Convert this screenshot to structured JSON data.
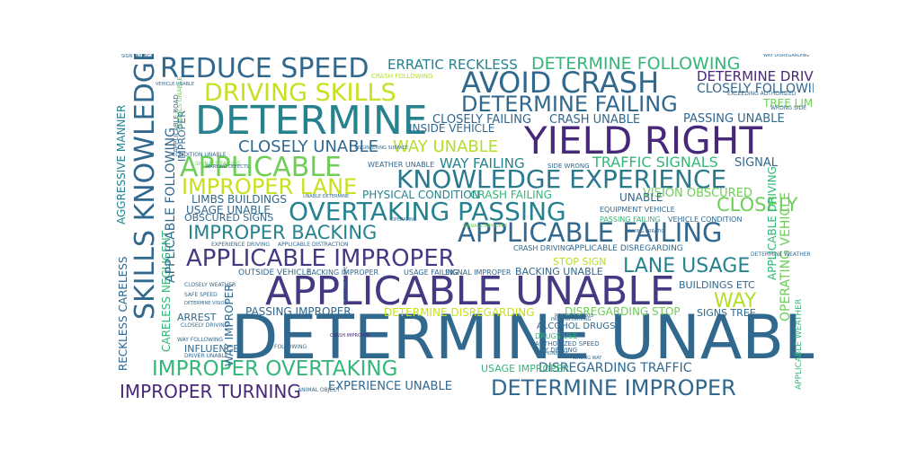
{
  "palette": {
    "dark_purple": "#482878",
    "purple": "#443983",
    "blue": "#31688e",
    "teal": "#26828e",
    "green_teal": "#1f9e89",
    "green": "#35b779",
    "lime": "#6ece58",
    "yellow_green": "#b5de2b",
    "yellow": "#fde725"
  },
  "words": [
    {
      "text": "DETERMINE UNABLE",
      "color": "#31688e"
    },
    {
      "text": "APPLICABLE UNABLE",
      "color": "#443983"
    },
    {
      "text": "YIELD RIGHT",
      "color": "#482878"
    },
    {
      "text": "DETERMINE",
      "color": "#26828e"
    },
    {
      "text": "AVOID CRASH",
      "color": "#31688e"
    },
    {
      "text": "SKILLS KNOWLEDGE",
      "color": "#31688e"
    },
    {
      "text": "REDUCE SPEED",
      "color": "#31688e"
    },
    {
      "text": "DRIVING SKILLS",
      "color": "#c8e020"
    },
    {
      "text": "DETERMINE FAILING",
      "color": "#31688e"
    },
    {
      "text": "KNOWLEDGE EXPERIENCE",
      "color": "#2a788e"
    },
    {
      "text": "APPLICABLE",
      "color": "#6ece58"
    },
    {
      "text": "IMPROPER LANE",
      "color": "#c8e020"
    },
    {
      "text": "OVERTAKING PASSING",
      "color": "#26828e"
    },
    {
      "text": "APPLICABLE FAILING",
      "color": "#31688e"
    },
    {
      "text": "APPLICABLE IMPROPER",
      "color": "#443983"
    },
    {
      "text": "IMPROPER OVERTAKING",
      "color": "#35b779"
    },
    {
      "text": "IMPROPER TURNING",
      "color": "#482878"
    },
    {
      "text": "DETERMINE IMPROPER",
      "color": "#31688e"
    },
    {
      "text": "IMPROPER BACKING",
      "color": "#26828e"
    },
    {
      "text": "LANE USAGE",
      "color": "#26828e"
    },
    {
      "text": "CLOSELY",
      "color": "#6ece58"
    },
    {
      "text": "WAY",
      "color": "#b5de2b"
    },
    {
      "text": "DETERMINE FOLLOWING",
      "color": "#35b779"
    },
    {
      "text": "ERRATIC RECKLESS",
      "color": "#26828e"
    },
    {
      "text": "DETERMINE DRIVING",
      "color": "#482878"
    },
    {
      "text": "CLOSELY FOLLOWING",
      "color": "#31688e"
    },
    {
      "text": "CLOSELY UNABLE",
      "color": "#31688e"
    },
    {
      "text": "WAY UNABLE",
      "color": "#b5de2b"
    },
    {
      "text": "WAY FAILING",
      "color": "#26828e"
    },
    {
      "text": "TRAFFIC SIGNALS",
      "color": "#35b779"
    },
    {
      "text": "SIGNAL",
      "color": "#31688e"
    },
    {
      "text": "CLOSELY FAILING",
      "color": "#31688e"
    },
    {
      "text": "CRASH UNABLE",
      "color": "#31688e"
    },
    {
      "text": "PASSING UNABLE",
      "color": "#31688e"
    },
    {
      "text": "TREE LIMBS",
      "color": "#6ece58"
    },
    {
      "text": "VISION OBSCURED",
      "color": "#6ece58"
    },
    {
      "text": "UNABLE",
      "color": "#31688e"
    },
    {
      "text": "PHYSICAL CONDITION",
      "color": "#26828e"
    },
    {
      "text": "CRASH FAILING",
      "color": "#35b779"
    },
    {
      "text": "LIMBS BUILDINGS",
      "color": "#31688e"
    },
    {
      "text": "USAGE UNABLE",
      "color": "#31688e"
    },
    {
      "text": "OBSCURED SIGNS",
      "color": "#31688e"
    },
    {
      "text": "INSIDE VEHICLE",
      "color": "#31688e"
    },
    {
      "text": "DISREGARDING TRAFFIC",
      "color": "#31688e"
    },
    {
      "text": "EXPERIENCE UNABLE",
      "color": "#31688e"
    },
    {
      "text": "USAGE IMPROPER",
      "color": "#35b779"
    },
    {
      "text": "DETERMINE DISREGARDING",
      "color": "#c8e020"
    },
    {
      "text": "DISREGARDING STOP",
      "color": "#6ece58"
    },
    {
      "text": "PASSING IMPROPER",
      "color": "#31688e"
    },
    {
      "text": "BACKING UNABLE",
      "color": "#31688e"
    },
    {
      "text": "STOP SIGN",
      "color": "#b5de2b"
    },
    {
      "text": "BUILDINGS ETC",
      "color": "#31688e"
    },
    {
      "text": "SIGNS TREE",
      "color": "#31688e"
    },
    {
      "text": "ARREST",
      "color": "#31688e"
    },
    {
      "text": "ALCOHOL DRUGS",
      "color": "#31688e"
    },
    {
      "text": "INFLUENCE",
      "color": "#31688e"
    },
    {
      "text": "RECKLESS CARELESS",
      "color": "#31688e"
    },
    {
      "text": "AGGRESSIVE MANNER",
      "color": "#26828e"
    },
    {
      "text": "CARELESS NEGLIGENT",
      "color": "#35b779"
    },
    {
      "text": "APPLICABLE FOLLOWING",
      "color": "#31688e"
    },
    {
      "text": "APPLICABLE DRIVING",
      "color": "#35b779"
    },
    {
      "text": "OPERATING VEHICLE",
      "color": "#6ece58"
    },
    {
      "text": "APPLICABLE WEATHER",
      "color": "#35b779"
    },
    {
      "text": "IMPROPER",
      "color": "#31688e"
    },
    {
      "text": "WAY IMPROPER",
      "color": "#31688e"
    },
    {
      "text": "WEATHER UNABLE",
      "color": "#31688e"
    },
    {
      "text": "SIDE WRONG",
      "color": "#31688e"
    },
    {
      "text": "EQUIPMENT VEHICLE",
      "color": "#31688e"
    },
    {
      "text": "PASSING FAILING",
      "color": "#35b779"
    },
    {
      "text": "VEHICLE CONDITION",
      "color": "#31688e"
    },
    {
      "text": "OUTSIDE VEHICLE",
      "color": "#31688e"
    },
    {
      "text": "BACKING IMPROPER",
      "color": "#31688e"
    },
    {
      "text": "USAGE FAILING",
      "color": "#31688e"
    },
    {
      "text": "SIGNAL IMPROPER",
      "color": "#31688e"
    },
    {
      "text": "APPLICABLE DISREGARDING",
      "color": "#31688e"
    },
    {
      "text": "CRASH DRIVING",
      "color": "#31688e"
    },
    {
      "text": "DRUGS USE",
      "color": "#35b779"
    },
    {
      "text": "AUTHORIZED SPEED",
      "color": "#31688e"
    },
    {
      "text": "WAY DRIVING",
      "color": "#31688e"
    },
    {
      "text": "CRASH FOLLOWING",
      "color": "#b5de2b"
    },
    {
      "text": "EXPERIENCE DRIVING",
      "color": "#31688e"
    },
    {
      "text": "APPLICABLE DISTRACTION",
      "color": "#31688e"
    },
    {
      "text": "WAY FOLLOWING",
      "color": "#31688e"
    },
    {
      "text": "SIGNALS FAILING",
      "color": "#6ece58"
    },
    {
      "text": "DETERMINE WEATHER",
      "color": "#31688e"
    },
    {
      "text": "EXCEEDING AUTHORIZED",
      "color": "#31688e"
    },
    {
      "text": "WRONG SIDE",
      "color": "#31688e"
    },
    {
      "text": "WAY DISREGARDING",
      "color": "#31688e"
    },
    {
      "text": "SIGN FAILING",
      "color": "#31688e"
    },
    {
      "text": "VEHICLE UNABLE",
      "color": "#31688e"
    },
    {
      "text": "DETERMINE VISION",
      "color": "#31688e"
    },
    {
      "text": "FOLLOWING",
      "color": "#31688e"
    },
    {
      "text": "DRIVER UNABLE",
      "color": "#31688e"
    },
    {
      "text": "SAFE SPEED",
      "color": "#31688e"
    },
    {
      "text": "CLOSELY WEATHER",
      "color": "#31688e"
    },
    {
      "text": "CLOSELY DRIVING",
      "color": "#31688e"
    },
    {
      "text": "CONDITION UNABLE",
      "color": "#31688e"
    },
    {
      "text": "CRASH IMPROPER",
      "color": "#482878"
    },
    {
      "text": "PHONE USE",
      "color": "#31688e"
    },
    {
      "text": "WRONG WAY",
      "color": "#31688e"
    },
    {
      "text": "ROAD MARKINGS",
      "color": "#31688e"
    },
    {
      "text": "PASSING DRIVING",
      "color": "#31688e"
    },
    {
      "text": "ANIMAL OBJECT",
      "color": "#31688e"
    },
    {
      "text": "UNABLE DETERMINE",
      "color": "#31688e"
    },
    {
      "text": "ENGINEERING SURFACE",
      "color": "#31688e"
    },
    {
      "text": "APPLICABLE ROAD",
      "color": "#31688e"
    },
    {
      "text": "SIGNALS UNABLE",
      "color": "#6ece58"
    },
    {
      "text": "SIGNALS IMPROPER",
      "color": "#6ece58"
    },
    {
      "text": "EXCEEDING SAFE",
      "color": "#31688e"
    },
    {
      "text": "OPERATING",
      "color": "#31688e"
    },
    {
      "text": "MARKING DEFECTS",
      "color": "#31688e"
    },
    {
      "text": "DRIVING ERRATIC",
      "color": "#31688e"
    },
    {
      "text": "CONSTRUCTION",
      "color": "#31688e"
    }
  ]
}
